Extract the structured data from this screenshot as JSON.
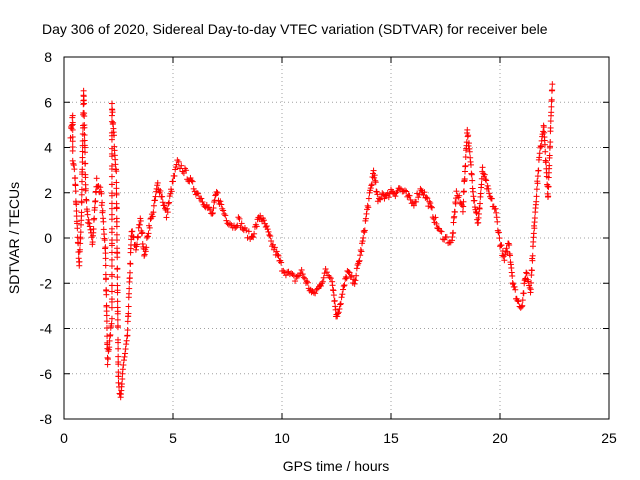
{
  "chart_data": {
    "type": "scatter",
    "title": "Day 306 of 2020, Sidereal Day-to-day VTEC variation (SDTVAR) for receiver bele",
    "xlabel": "GPS time / hours",
    "ylabel": "SDTVAR / TECUs",
    "xlim": [
      0,
      25
    ],
    "ylim": [
      -8,
      8
    ],
    "xticks": [
      0,
      5,
      10,
      15,
      20,
      25
    ],
    "yticks": [
      -8,
      -6,
      -4,
      -2,
      0,
      2,
      4,
      6,
      8
    ],
    "grid": true,
    "marker": "plus",
    "color": "#ff0000",
    "series": [
      {
        "name": "SDTVAR",
        "anchors": [
          [
            0.3,
            4.6
          ],
          [
            0.4,
            5.4
          ],
          [
            0.4,
            3.5
          ],
          [
            0.5,
            2.8
          ],
          [
            0.6,
            0.5
          ],
          [
            0.7,
            -1.2
          ],
          [
            0.8,
            1.0
          ],
          [
            0.9,
            6.5
          ],
          [
            1.0,
            2.0
          ],
          [
            1.1,
            0.8
          ],
          [
            1.3,
            -0.2
          ],
          [
            1.5,
            2.5
          ],
          [
            1.7,
            2.0
          ],
          [
            1.9,
            -0.5
          ],
          [
            2.0,
            -5.5
          ],
          [
            2.2,
            -3.5
          ],
          [
            2.2,
            5.8
          ],
          [
            2.4,
            2.8
          ],
          [
            2.5,
            -6.5
          ],
          [
            2.6,
            -7.2
          ],
          [
            2.7,
            -5.8
          ],
          [
            2.9,
            -4.5
          ],
          [
            3.1,
            0.3
          ],
          [
            3.3,
            -0.5
          ],
          [
            3.5,
            0.8
          ],
          [
            3.7,
            -0.8
          ],
          [
            3.9,
            0.5
          ],
          [
            4.1,
            1.2
          ],
          [
            4.3,
            2.4
          ],
          [
            4.5,
            1.8
          ],
          [
            4.7,
            1.0
          ],
          [
            5.0,
            2.5
          ],
          [
            5.2,
            3.3
          ],
          [
            5.5,
            3.0
          ],
          [
            5.8,
            2.5
          ],
          [
            6.1,
            2.0
          ],
          [
            6.5,
            1.5
          ],
          [
            6.8,
            1.0
          ],
          [
            7.0,
            2.0
          ],
          [
            7.3,
            1.2
          ],
          [
            7.5,
            0.8
          ],
          [
            7.8,
            0.5
          ],
          [
            8.0,
            0.8
          ],
          [
            8.3,
            0.3
          ],
          [
            8.6,
            0.0
          ],
          [
            8.8,
            0.5
          ],
          [
            9.0,
            1.0
          ],
          [
            9.3,
            0.4
          ],
          [
            9.5,
            -0.2
          ],
          [
            9.8,
            -0.8
          ],
          [
            10.0,
            -1.3
          ],
          [
            10.3,
            -1.6
          ],
          [
            10.6,
            -1.8
          ],
          [
            10.9,
            -1.5
          ],
          [
            11.1,
            -1.9
          ],
          [
            11.4,
            -2.5
          ],
          [
            11.7,
            -2.2
          ],
          [
            12.0,
            -1.5
          ],
          [
            12.3,
            -1.8
          ],
          [
            12.5,
            -3.5
          ],
          [
            12.7,
            -2.8
          ],
          [
            13.0,
            -1.5
          ],
          [
            13.3,
            -2.0
          ],
          [
            13.5,
            -1.2
          ],
          [
            13.7,
            -0.2
          ],
          [
            13.9,
            1.2
          ],
          [
            14.1,
            2.3
          ],
          [
            14.2,
            3.0
          ],
          [
            14.4,
            1.6
          ],
          [
            14.6,
            2.0
          ],
          [
            14.8,
            1.8
          ],
          [
            15.0,
            2.1
          ],
          [
            15.2,
            2.0
          ],
          [
            15.4,
            2.2
          ],
          [
            15.7,
            1.9
          ],
          [
            16.0,
            1.5
          ],
          [
            16.4,
            2.2
          ],
          [
            16.8,
            1.4
          ],
          [
            17.2,
            0.3
          ],
          [
            17.5,
            0.0
          ],
          [
            17.8,
            -0.2
          ],
          [
            18.0,
            2.0
          ],
          [
            18.3,
            1.3
          ],
          [
            18.5,
            4.8
          ],
          [
            18.8,
            1.8
          ],
          [
            19.0,
            0.6
          ],
          [
            19.2,
            3.0
          ],
          [
            19.5,
            1.9
          ],
          [
            19.8,
            1.2
          ],
          [
            20.0,
            -0.2
          ],
          [
            20.2,
            -1.0
          ],
          [
            20.4,
            -0.2
          ],
          [
            20.6,
            -2.0
          ],
          [
            20.8,
            -2.8
          ],
          [
            21.0,
            -3.0
          ],
          [
            21.2,
            -1.5
          ],
          [
            21.4,
            -2.3
          ],
          [
            21.6,
            1.0
          ],
          [
            21.8,
            3.5
          ],
          [
            22.0,
            5.0
          ],
          [
            22.2,
            1.8
          ],
          [
            22.4,
            6.8
          ]
        ]
      }
    ]
  }
}
